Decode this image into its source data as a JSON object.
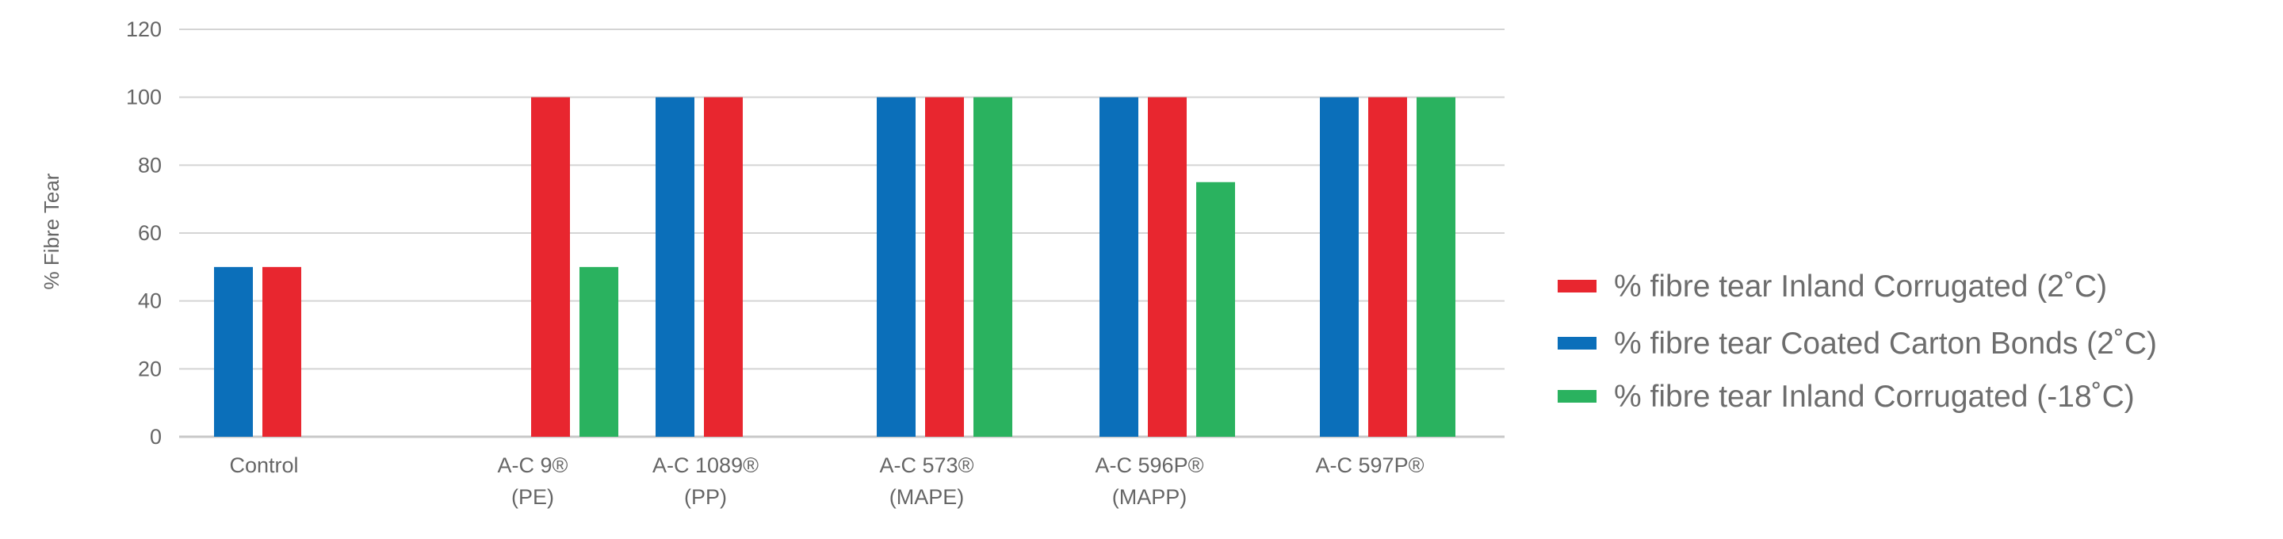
{
  "chart_data": {
    "type": "bar",
    "title": "",
    "xlabel": "",
    "ylabel": "% Fibre Tear",
    "ylim": [
      0,
      120
    ],
    "yticks": [
      "0",
      "20",
      "40",
      "60",
      "80",
      "100",
      "120"
    ],
    "grid": true,
    "legend_position": "right",
    "categories": [
      {
        "line1": "Control",
        "line2": ""
      },
      {
        "line1": "A-C 9®",
        "line2": "(PE)"
      },
      {
        "line1": "A-C 1089®",
        "line2": "(PP)"
      },
      {
        "line1": "A-C 573®",
        "line2": "(MAPE)"
      },
      {
        "line1": "A-C 596P®",
        "line2": "(MAPP)"
      },
      {
        "line1": "A-C 597P®",
        "line2": ""
      }
    ],
    "series": [
      {
        "name": "% fibre tear Coated Carton Bonds (2˚C)",
        "color": "#0b6fba",
        "values": [
          50,
          null,
          100,
          100,
          100,
          100
        ]
      },
      {
        "name": "% fibre tear Inland Corrugated (2˚C)",
        "color": "#e8262f",
        "values": [
          50,
          100,
          100,
          100,
          100,
          100
        ]
      },
      {
        "name": "% fibre tear Inland Corrugated (-18˚C)",
        "color": "#2ab25f",
        "values": [
          null,
          50,
          null,
          100,
          75,
          100
        ]
      }
    ],
    "legend_order": [
      1,
      0,
      2
    ]
  }
}
